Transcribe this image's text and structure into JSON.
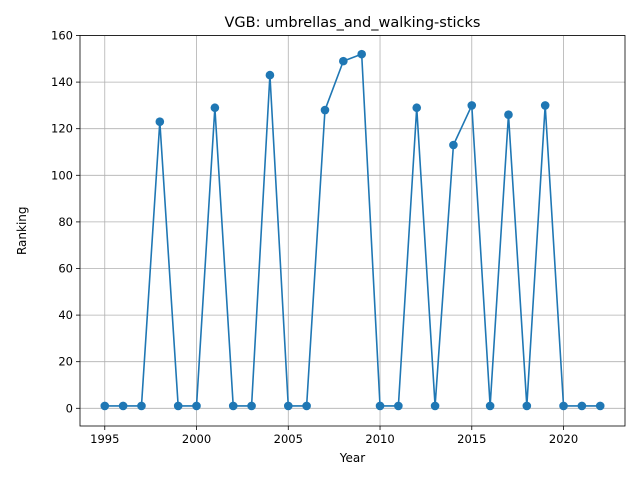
{
  "chart_data": {
    "type": "line",
    "title": "VGB: umbrellas_and_walking-sticks",
    "xlabel": "Year",
    "ylabel": "Ranking",
    "xlim": [
      1993.65,
      2023.35
    ],
    "ylim": [
      -7.6,
      160
    ],
    "xticks": [
      1995,
      2000,
      2005,
      2010,
      2015,
      2020
    ],
    "yticks": [
      0,
      20,
      40,
      60,
      80,
      100,
      120,
      140,
      160
    ],
    "grid": true,
    "color": "#1f77b4",
    "marker": "circle",
    "x": [
      1995,
      1996,
      1997,
      1998,
      1999,
      2000,
      2001,
      2002,
      2003,
      2004,
      2005,
      2006,
      2007,
      2008,
      2009,
      2010,
      2011,
      2012,
      2013,
      2014,
      2015,
      2016,
      2017,
      2018,
      2019,
      2020,
      2021,
      2022
    ],
    "y": [
      1,
      1,
      1,
      123,
      1,
      1,
      129,
      1,
      1,
      143,
      1,
      1,
      128,
      149,
      152,
      1,
      1,
      129,
      1,
      113,
      130,
      1,
      126,
      1,
      130,
      1,
      1,
      1
    ]
  }
}
